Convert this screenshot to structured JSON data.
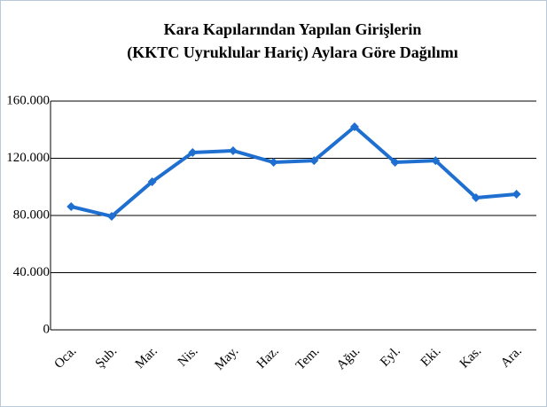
{
  "chart_data": {
    "type": "line",
    "title": [
      "Kara Kapılarından Yapılan Girişlerin",
      "(KKTC Uyruklular Hariç) Aylara Göre Dağılımı"
    ],
    "categories": [
      "Oca.",
      "Şub.",
      "Mar.",
      "Nis.",
      "May.",
      "Haz.",
      "Tem.",
      "Ağu.",
      "Eyl.",
      "Eki.",
      "Kas.",
      "Ara."
    ],
    "values": [
      86200,
      79400,
      103600,
      124000,
      125300,
      117200,
      118400,
      142000,
      117200,
      118400,
      92400,
      94900
    ],
    "color": "#1f6fd0",
    "ylim": [
      0,
      160000
    ],
    "yticks": [
      0,
      {
        "value": 40000,
        "label": "40.000"
      },
      {
        "value": 80000,
        "label": "80.000"
      },
      {
        "value": 120000,
        "label": "120.000"
      },
      {
        "value": 160000,
        "label": "160.000"
      }
    ],
    "grid": true
  }
}
